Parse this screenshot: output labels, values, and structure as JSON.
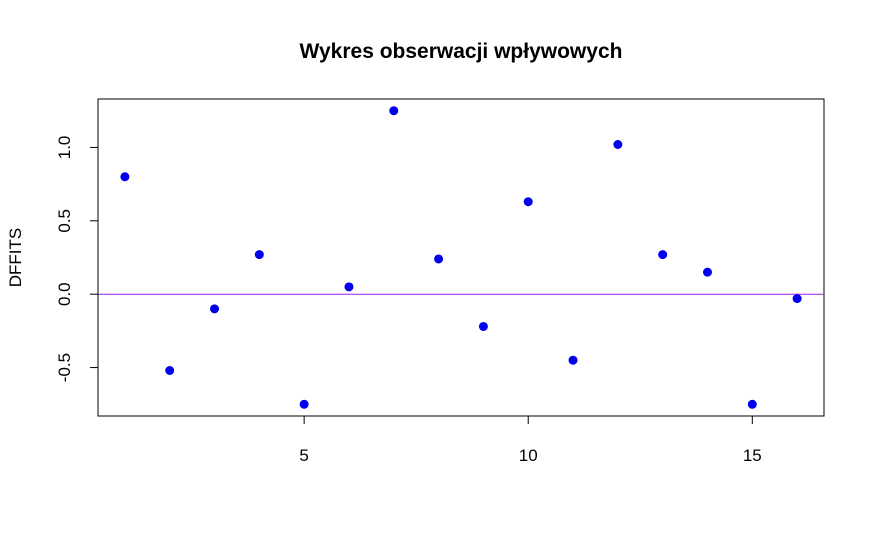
{
  "chart_data": {
    "type": "scatter",
    "title": "Wykres obserwacji wpływowych",
    "xlabel": "",
    "ylabel": "DFFITS",
    "xlim": [
      0.4,
      16.6
    ],
    "ylim": [
      -0.83,
      1.33
    ],
    "x_ticks": [
      5,
      10,
      15
    ],
    "x_tick_labels": [
      "5",
      "10",
      "15"
    ],
    "y_ticks": [
      -0.5,
      0.0,
      0.5,
      1.0
    ],
    "y_tick_labels": [
      "-0.5",
      "0.0",
      "0.5",
      "1.0"
    ],
    "reference_line": {
      "y": 0,
      "color": "#a020f0"
    },
    "point_color": "#0000ee",
    "grid": false,
    "series": [
      {
        "x": [
          1,
          2,
          3,
          4,
          5,
          6,
          7,
          8,
          9,
          10,
          11,
          12,
          13,
          14,
          15,
          16
        ],
        "y": [
          0.8,
          -0.52,
          -0.1,
          0.27,
          -0.75,
          0.05,
          1.25,
          0.24,
          -0.22,
          0.63,
          -0.45,
          1.02,
          0.27,
          0.15,
          -0.75,
          -0.03
        ]
      }
    ]
  }
}
